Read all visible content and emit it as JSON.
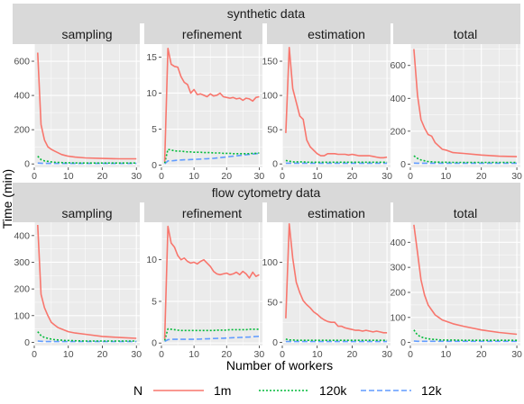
{
  "figure": {
    "ylabel": "Time (min)",
    "xlabel": "Number of workers",
    "legend": {
      "title": "N",
      "position": "bottom",
      "entries": [
        {
          "label": "1m",
          "color": "#F8766D",
          "dash": "solid"
        },
        {
          "label": "120k",
          "color": "#00BA38",
          "dash": "dotted"
        },
        {
          "label": "12k",
          "color": "#619CFF",
          "dash": "dashed"
        }
      ]
    }
  },
  "chart_data": [
    {
      "type": "line",
      "dataset": "synthetic data",
      "facet": "sampling",
      "xlim": [
        0,
        31
      ],
      "xticks": [
        0,
        10,
        20,
        30
      ],
      "ylim": [
        -20,
        700
      ],
      "yticks": [
        0,
        200,
        400,
        600
      ],
      "x": [
        1,
        2,
        3,
        4,
        5,
        6,
        7,
        8,
        9,
        10,
        12,
        15,
        20,
        25,
        30
      ],
      "series": [
        {
          "name": "1m",
          "values": [
            650,
            230,
            140,
            100,
            85,
            75,
            65,
            55,
            50,
            45,
            40,
            35,
            32,
            30,
            30
          ]
        },
        {
          "name": "120k",
          "values": [
            45,
            25,
            18,
            15,
            12,
            10,
            9,
            8,
            7,
            7,
            6,
            5,
            5,
            5,
            5
          ]
        },
        {
          "name": "12k",
          "values": [
            5,
            4,
            3,
            3,
            3,
            3,
            3,
            3,
            3,
            3,
            3,
            3,
            3,
            3,
            3
          ]
        }
      ]
    },
    {
      "type": "line",
      "dataset": "synthetic data",
      "facet": "refinement",
      "xlim": [
        0,
        31
      ],
      "xticks": [
        0,
        10,
        20,
        30
      ],
      "ylim": [
        -0.3,
        16.8
      ],
      "yticks": [
        0,
        5,
        10,
        15
      ],
      "x": [
        1,
        2,
        3,
        4,
        5,
        6,
        7,
        8,
        9,
        10,
        11,
        12,
        13,
        14,
        15,
        16,
        17,
        18,
        19,
        20,
        21,
        22,
        23,
        24,
        25,
        26,
        27,
        28,
        29,
        30
      ],
      "series": [
        {
          "name": "1m",
          "values": [
            0.5,
            16.2,
            14.0,
            13.7,
            13.6,
            12.3,
            11.5,
            11.2,
            10.0,
            10.5,
            9.8,
            9.9,
            9.7,
            9.5,
            9.9,
            9.6,
            9.7,
            10.0,
            9.5,
            9.4,
            9.3,
            9.4,
            9.2,
            9.3,
            9.0,
            9.3,
            9.2,
            8.9,
            9.4,
            9.5
          ]
        },
        {
          "name": "120k",
          "values": [
            0.3,
            2.2,
            2.1,
            2.0,
            1.95,
            1.95,
            1.9,
            1.85,
            1.85,
            1.8,
            1.8,
            1.8,
            1.75,
            1.75,
            1.75,
            1.7,
            1.7,
            1.7,
            1.65,
            1.65,
            1.65,
            1.6,
            1.6,
            1.6,
            1.6,
            1.6,
            1.6,
            1.65,
            1.65,
            1.7
          ]
        },
        {
          "name": "12k",
          "values": [
            0.2,
            0.6,
            0.6,
            0.65,
            0.7,
            0.72,
            0.75,
            0.75,
            0.78,
            0.8,
            0.82,
            0.85,
            0.88,
            0.9,
            0.92,
            0.95,
            1.0,
            1.05,
            1.1,
            1.15,
            1.2,
            1.25,
            1.3,
            1.35,
            1.4,
            1.45,
            1.5,
            1.55,
            1.6,
            1.65
          ]
        }
      ]
    },
    {
      "type": "line",
      "dataset": "synthetic data",
      "facet": "estimation",
      "xlim": [
        0,
        31
      ],
      "xticks": [
        0,
        10,
        20,
        30
      ],
      "ylim": [
        -5,
        175
      ],
      "yticks": [
        0,
        50,
        100,
        150
      ],
      "x": [
        1,
        2,
        3,
        4,
        5,
        6,
        7,
        8,
        9,
        10,
        11,
        12,
        13,
        14,
        15,
        16,
        17,
        18,
        19,
        20,
        21,
        22,
        23,
        24,
        25,
        26,
        27,
        28,
        29,
        30
      ],
      "series": [
        {
          "name": "1m",
          "values": [
            45,
            170,
            110,
            90,
            70,
            65,
            35,
            25,
            20,
            15,
            12,
            12,
            15,
            15,
            15,
            14,
            14,
            14,
            13,
            14,
            13,
            12,
            12,
            12,
            12,
            11,
            10,
            9,
            9,
            10
          ]
        },
        {
          "name": "120k",
          "values": [
            5,
            4,
            3,
            3,
            3,
            3,
            2.5,
            2.5,
            2.5,
            2.5,
            2.5,
            2.5,
            2.5,
            2.5,
            2.5,
            2.5,
            2.5,
            2.5,
            2.5,
            2.5,
            2.5,
            2.5,
            2.5,
            2.5,
            2.5,
            2.5,
            2.5,
            2.5,
            2.5,
            2.5
          ]
        },
        {
          "name": "12k",
          "values": [
            1,
            1,
            1,
            1,
            1,
            1,
            1,
            1,
            1,
            1,
            1,
            1,
            1,
            1,
            1,
            1,
            1,
            1,
            1,
            1,
            1,
            1,
            1,
            1,
            1,
            1,
            1,
            1,
            1,
            1
          ]
        }
      ]
    },
    {
      "type": "line",
      "dataset": "synthetic data",
      "facet": "total",
      "xlim": [
        0,
        31
      ],
      "xticks": [
        0,
        10,
        20,
        30
      ],
      "ylim": [
        -20,
        730
      ],
      "yticks": [
        0,
        200,
        400,
        600
      ],
      "x": [
        1,
        2,
        3,
        4,
        5,
        6,
        7,
        8,
        9,
        10,
        12,
        15,
        20,
        25,
        30
      ],
      "series": [
        {
          "name": "1m",
          "values": [
            700,
            420,
            270,
            220,
            180,
            170,
            130,
            110,
            90,
            85,
            70,
            65,
            55,
            48,
            45
          ]
        },
        {
          "name": "120k",
          "values": [
            50,
            35,
            25,
            20,
            15,
            14,
            12,
            12,
            11,
            11,
            10,
            10,
            10,
            10,
            10
          ]
        },
        {
          "name": "12k",
          "values": [
            6,
            5,
            5,
            5,
            5,
            5,
            5,
            5,
            5,
            5,
            5,
            5,
            5,
            5,
            5
          ]
        }
      ]
    },
    {
      "type": "line",
      "dataset": "flow cytometry data",
      "facet": "sampling",
      "xlim": [
        0,
        31
      ],
      "xticks": [
        0,
        10,
        20,
        30
      ],
      "ylim": [
        -12,
        450
      ],
      "yticks": [
        0,
        100,
        200,
        300,
        400
      ],
      "x": [
        1,
        2,
        3,
        4,
        5,
        6,
        7,
        8,
        9,
        10,
        12,
        15,
        20,
        25,
        30
      ],
      "series": [
        {
          "name": "1m",
          "values": [
            440,
            180,
            130,
            100,
            75,
            65,
            55,
            50,
            45,
            40,
            35,
            30,
            22,
            18,
            15
          ]
        },
        {
          "name": "120k",
          "values": [
            40,
            25,
            18,
            15,
            12,
            10,
            9,
            8,
            7,
            7,
            6,
            5,
            5,
            5,
            5
          ]
        },
        {
          "name": "12k",
          "values": [
            5,
            4,
            3,
            3,
            3,
            3,
            3,
            3,
            3,
            3,
            3,
            3,
            3,
            3,
            3
          ]
        }
      ]
    },
    {
      "type": "line",
      "dataset": "flow cytometry data",
      "facet": "refinement",
      "xlim": [
        0,
        31
      ],
      "xticks": [
        0,
        10,
        20,
        30
      ],
      "ylim": [
        -0.3,
        14.5
      ],
      "yticks": [
        0,
        5,
        10
      ],
      "x": [
        1,
        2,
        3,
        4,
        5,
        6,
        7,
        8,
        9,
        10,
        11,
        12,
        13,
        14,
        15,
        16,
        17,
        18,
        19,
        20,
        21,
        22,
        23,
        24,
        25,
        26,
        27,
        28,
        29,
        30
      ],
      "series": [
        {
          "name": "1m",
          "values": [
            0.5,
            14.0,
            12.0,
            11.5,
            10.5,
            10.0,
            10.2,
            9.8,
            9.6,
            9.7,
            9.5,
            9.8,
            10.0,
            9.6,
            9.2,
            8.6,
            8.3,
            8.2,
            8.3,
            8.4,
            8.2,
            8.3,
            8.5,
            8.2,
            8.6,
            8.3,
            7.8,
            8.5,
            8.0,
            8.2
          ]
        },
        {
          "name": "120k",
          "values": [
            0.3,
            1.7,
            1.65,
            1.6,
            1.55,
            1.5,
            1.5,
            1.5,
            1.5,
            1.5,
            1.5,
            1.5,
            1.5,
            1.5,
            1.5,
            1.5,
            1.55,
            1.55,
            1.55,
            1.55,
            1.6,
            1.6,
            1.6,
            1.6,
            1.6,
            1.6,
            1.65,
            1.65,
            1.65,
            1.65
          ]
        },
        {
          "name": "12k",
          "values": [
            0.2,
            0.4,
            0.45,
            0.45,
            0.45,
            0.45,
            0.45,
            0.45,
            0.45,
            0.45,
            0.47,
            0.48,
            0.5,
            0.5,
            0.52,
            0.54,
            0.55,
            0.57,
            0.58,
            0.6,
            0.62,
            0.64,
            0.65,
            0.67,
            0.68,
            0.7,
            0.72,
            0.75,
            0.78,
            0.8
          ]
        }
      ]
    },
    {
      "type": "line",
      "dataset": "flow cytometry data",
      "facet": "estimation",
      "xlim": [
        0,
        31
      ],
      "xticks": [
        0,
        10,
        20,
        30
      ],
      "ylim": [
        -4,
        150
      ],
      "yticks": [
        0,
        50,
        100
      ],
      "x": [
        1,
        2,
        3,
        4,
        5,
        6,
        7,
        8,
        9,
        10,
        11,
        12,
        13,
        14,
        15,
        16,
        17,
        18,
        19,
        20,
        21,
        22,
        23,
        24,
        25,
        26,
        27,
        28,
        29,
        30
      ],
      "series": [
        {
          "name": "1m",
          "values": [
            30,
            148,
            105,
            75,
            62,
            52,
            47,
            43,
            38,
            35,
            31,
            28,
            26,
            25,
            25,
            20,
            20,
            18,
            17,
            16,
            15,
            15,
            14,
            15,
            14,
            13,
            14,
            13,
            12,
            12
          ]
        },
        {
          "name": "120k",
          "values": [
            4,
            3,
            3,
            2.5,
            2.5,
            2.5,
            2.5,
            2.5,
            2.5,
            2.5,
            2.5,
            2.5,
            2.5,
            2.5,
            2.5,
            2.5,
            2.5,
            2.5,
            2.5,
            2.5,
            2.5,
            2.5,
            2.5,
            2.5,
            2.5,
            2.5,
            2.5,
            2.5,
            2.5,
            2.5
          ]
        },
        {
          "name": "12k",
          "values": [
            1,
            1,
            1,
            1,
            1,
            1,
            1,
            1,
            1,
            1,
            1,
            1,
            1,
            1,
            1,
            1,
            1,
            1,
            1,
            1,
            1,
            1,
            1,
            1,
            1,
            1,
            1,
            1,
            1,
            1
          ]
        }
      ]
    },
    {
      "type": "line",
      "dataset": "flow cytometry data",
      "facet": "total",
      "xlim": [
        0,
        31
      ],
      "xticks": [
        0,
        10,
        20,
        30
      ],
      "ylim": [
        -12,
        480
      ],
      "yticks": [
        0,
        100,
        200,
        300,
        400
      ],
      "x": [
        1,
        2,
        3,
        4,
        5,
        6,
        7,
        8,
        9,
        10,
        12,
        15,
        20,
        25,
        30
      ],
      "series": [
        {
          "name": "1m",
          "values": [
            470,
            360,
            250,
            190,
            150,
            130,
            110,
            100,
            90,
            85,
            75,
            65,
            50,
            40,
            33
          ]
        },
        {
          "name": "120k",
          "values": [
            50,
            30,
            22,
            18,
            15,
            13,
            12,
            11,
            10,
            10,
            10,
            9,
            9,
            9,
            9
          ]
        },
        {
          "name": "12k",
          "values": [
            6,
            5,
            5,
            5,
            5,
            5,
            5,
            5,
            5,
            5,
            5,
            5,
            5,
            5,
            5
          ]
        }
      ]
    }
  ]
}
